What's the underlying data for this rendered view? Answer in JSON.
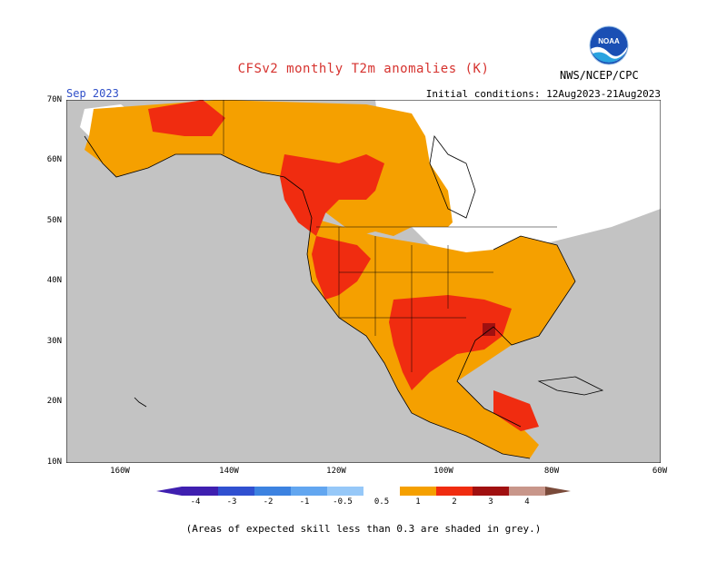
{
  "title": "CFSv2 monthly T2m anomalies (K)",
  "agency": "NWS/NCEP/CPC",
  "logo_text": "NOAA",
  "month": "Sep 2023",
  "initial_conditions": "Initial conditions: 12Aug2023-21Aug2023",
  "lat_labels": [
    "70N",
    "60N",
    "50N",
    "40N",
    "30N",
    "20N",
    "10N"
  ],
  "lon_labels": [
    "160W",
    "140W",
    "120W",
    "100W",
    "80W",
    "60W"
  ],
  "legend": {
    "ticks": [
      "-4",
      "-3",
      "-2",
      "-1",
      "-0.5",
      "0.5",
      "1",
      "2",
      "3",
      "4"
    ],
    "colors": [
      "#3f1fb0",
      "#3050d0",
      "#3c82e0",
      "#62a6f0",
      "#96c8f8",
      "#ffffff",
      "#f5a000",
      "#f02c10",
      "#a01010",
      "#c8968a",
      "#7a4a3a"
    ]
  },
  "note": "(Areas of expected skill less than 0.3 are shaded in grey.)",
  "colors": {
    "grey_no_skill": "#c3c3c3",
    "anom_0_5_to_1": "#f5a000",
    "anom_1_to_2": "#f02c10",
    "anom_2_to_3": "#a01010",
    "title_red": "#d6322e",
    "month_blue": "#2f4fc8"
  }
}
